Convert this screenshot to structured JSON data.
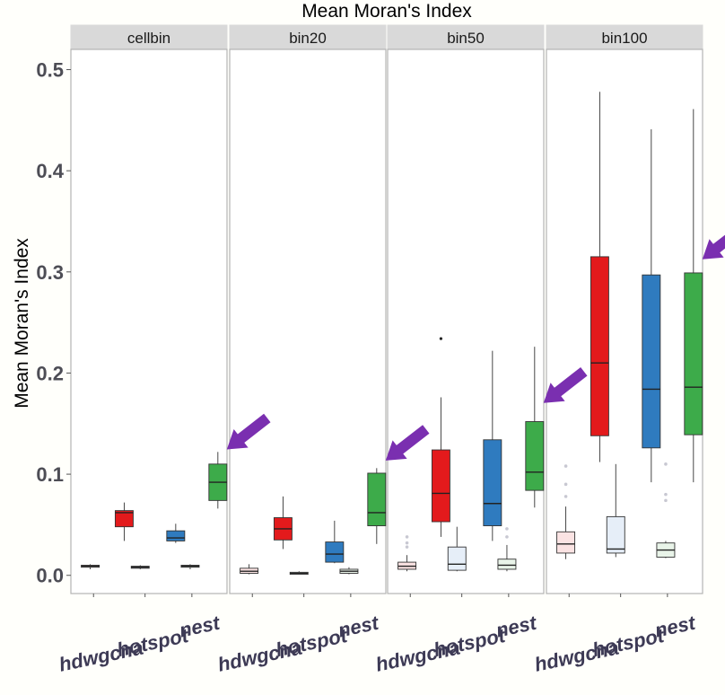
{
  "chart_data": {
    "type": "boxplot",
    "title": "Mean Moran's Index",
    "ylabel": "Mean Moran's Index",
    "xlabel": "",
    "ylim": [
      -0.018,
      0.52
    ],
    "yticks": [
      "0.0",
      "0.1",
      "0.2",
      "0.3",
      "0.4",
      "0.5"
    ],
    "ytick_values": [
      0.0,
      0.1,
      0.2,
      0.3,
      0.4,
      0.5
    ],
    "categories": [
      "hdwgcna",
      "hotspot",
      "nest"
    ],
    "colors": {
      "hdwgcna": "#e31a1c",
      "hotspot": "#2f7bbf",
      "nest": "#3dab4a",
      "hdwgcna_light": "#fbe3e3",
      "hotspot_light": "#e6eef8",
      "nest_light": "#e9f4e9",
      "arrow": "#7a2fb0",
      "strip": "#d9d9d9",
      "panel_border": "#b3b3b3"
    },
    "panels": [
      {
        "name": "cellbin",
        "boxes": [
          {
            "group": "hdwgcna",
            "shade": "light",
            "min": 0.006,
            "q1": 0.008,
            "median": 0.009,
            "q3": 0.01,
            "max": 0.011,
            "outliers": []
          },
          {
            "group": "hdwgcna",
            "shade": "dark",
            "min": 0.034,
            "q1": 0.048,
            "median": 0.062,
            "q3": 0.064,
            "max": 0.072,
            "outliers": []
          },
          {
            "group": "hotspot",
            "shade": "light",
            "min": 0.006,
            "q1": 0.007,
            "median": 0.008,
            "q3": 0.009,
            "max": 0.01,
            "outliers": []
          },
          {
            "group": "hotspot",
            "shade": "dark",
            "min": 0.032,
            "q1": 0.034,
            "median": 0.037,
            "q3": 0.044,
            "max": 0.051,
            "outliers": []
          },
          {
            "group": "nest",
            "shade": "light",
            "min": 0.006,
            "q1": 0.008,
            "median": 0.009,
            "q3": 0.01,
            "max": 0.011,
            "outliers": []
          },
          {
            "group": "nest",
            "shade": "dark",
            "min": 0.066,
            "q1": 0.074,
            "median": 0.092,
            "q3": 0.11,
            "max": 0.122,
            "outliers": []
          }
        ]
      },
      {
        "name": "bin20",
        "boxes": [
          {
            "group": "hdwgcna",
            "shade": "light",
            "min": 0.001,
            "q1": 0.002,
            "median": 0.004,
            "q3": 0.007,
            "max": 0.011,
            "outliers": []
          },
          {
            "group": "hdwgcna",
            "shade": "dark",
            "min": 0.026,
            "q1": 0.035,
            "median": 0.046,
            "q3": 0.057,
            "max": 0.078,
            "outliers": []
          },
          {
            "group": "hotspot",
            "shade": "light",
            "min": 0.001,
            "q1": 0.001,
            "median": 0.002,
            "q3": 0.003,
            "max": 0.004,
            "outliers": []
          },
          {
            "group": "hotspot",
            "shade": "dark",
            "min": 0.012,
            "q1": 0.013,
            "median": 0.021,
            "q3": 0.033,
            "max": 0.054,
            "outliers": []
          },
          {
            "group": "nest",
            "shade": "light",
            "min": 0.001,
            "q1": 0.002,
            "median": 0.004,
            "q3": 0.006,
            "max": 0.008,
            "outliers": []
          },
          {
            "group": "nest",
            "shade": "dark",
            "min": 0.031,
            "q1": 0.049,
            "median": 0.062,
            "q3": 0.101,
            "max": 0.106,
            "outliers": []
          }
        ]
      },
      {
        "name": "bin50",
        "boxes": [
          {
            "group": "hdwgcna",
            "shade": "light",
            "min": 0.004,
            "q1": 0.006,
            "median": 0.009,
            "q3": 0.013,
            "max": 0.02,
            "outliers": [
              0.028,
              0.032,
              0.038
            ]
          },
          {
            "group": "hdwgcna",
            "shade": "dark",
            "min": 0.038,
            "q1": 0.053,
            "median": 0.081,
            "q3": 0.124,
            "max": 0.176,
            "outliers": [
              0.234
            ]
          },
          {
            "group": "hotspot",
            "shade": "light",
            "min": 0.004,
            "q1": 0.005,
            "median": 0.011,
            "q3": 0.028,
            "max": 0.048,
            "outliers": []
          },
          {
            "group": "hotspot",
            "shade": "dark",
            "min": 0.034,
            "q1": 0.049,
            "median": 0.071,
            "q3": 0.134,
            "max": 0.222,
            "outliers": []
          },
          {
            "group": "nest",
            "shade": "light",
            "min": 0.004,
            "q1": 0.006,
            "median": 0.01,
            "q3": 0.016,
            "max": 0.03,
            "outliers": [
              0.038,
              0.046
            ]
          },
          {
            "group": "nest",
            "shade": "dark",
            "min": 0.067,
            "q1": 0.084,
            "median": 0.102,
            "q3": 0.152,
            "max": 0.226,
            "outliers": []
          }
        ]
      },
      {
        "name": "bin100",
        "boxes": [
          {
            "group": "hdwgcna",
            "shade": "light",
            "min": 0.016,
            "q1": 0.022,
            "median": 0.031,
            "q3": 0.043,
            "max": 0.068,
            "outliers": [
              0.078,
              0.09,
              0.108
            ]
          },
          {
            "group": "hdwgcna",
            "shade": "dark",
            "min": 0.112,
            "q1": 0.138,
            "median": 0.21,
            "q3": 0.315,
            "max": 0.478,
            "outliers": []
          },
          {
            "group": "hotspot",
            "shade": "light",
            "min": 0.018,
            "q1": 0.022,
            "median": 0.026,
            "q3": 0.058,
            "max": 0.11,
            "outliers": []
          },
          {
            "group": "hotspot",
            "shade": "dark",
            "min": 0.092,
            "q1": 0.126,
            "median": 0.184,
            "q3": 0.297,
            "max": 0.441,
            "outliers": []
          },
          {
            "group": "nest",
            "shade": "light",
            "min": 0.017,
            "q1": 0.018,
            "median": 0.025,
            "q3": 0.032,
            "max": 0.034,
            "outliers": [
              0.074,
              0.08,
              0.11
            ]
          },
          {
            "group": "nest",
            "shade": "dark",
            "min": 0.092,
            "q1": 0.139,
            "median": 0.186,
            "q3": 0.299,
            "max": 0.461,
            "outliers": []
          }
        ]
      }
    ],
    "x_tick_labels": [
      [
        "hdwgcna",
        "hotspot",
        "nest"
      ],
      [
        "hdwgcna",
        "hotspot",
        "nest"
      ],
      [
        "hdwgcna",
        "hotspot",
        "nest"
      ],
      [
        "hdwgcna",
        "hotspot",
        "nest"
      ]
    ],
    "annotations": [
      {
        "type": "arrow",
        "panel": "cellbin",
        "points_to": "nest",
        "value": 0.128
      },
      {
        "type": "arrow",
        "panel": "bin20",
        "points_to": "nest",
        "value": 0.117
      },
      {
        "type": "arrow",
        "panel": "bin50",
        "points_to": "nest",
        "value": 0.174
      },
      {
        "type": "arrow",
        "panel": "bin100",
        "points_to": "nest",
        "value": 0.316
      }
    ]
  }
}
